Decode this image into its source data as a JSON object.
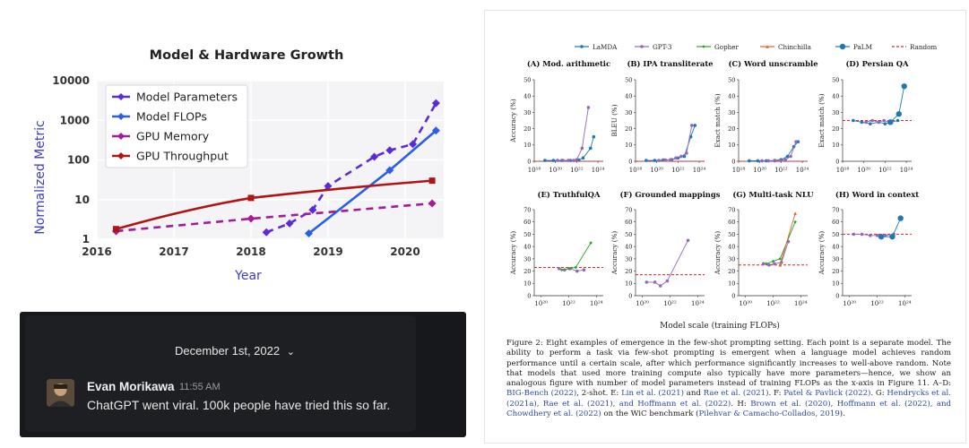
{
  "left_chart": {
    "title": "Model & Hardware Growth",
    "xlabel": "Year",
    "ylabel": "Normalized Metric",
    "x_ticks": [
      "2016",
      "2017",
      "2018",
      "2019",
      "2020"
    ],
    "y_ticks": [
      "1",
      "10",
      "100",
      "1000",
      "10000"
    ],
    "legend": [
      "Model Parameters",
      "Model FLOPs",
      "GPU Memory",
      "GPU Throughput"
    ],
    "colors": [
      "#5c2bd9",
      "#2a5ee8",
      "#a41d96",
      "#b01515"
    ]
  },
  "chart_data": [
    {
      "type": "line",
      "title": "Model & Hardware Growth",
      "xlabel": "Year",
      "ylabel": "Normalized Metric",
      "xlim": [
        2016,
        2020.5
      ],
      "ylim": [
        1,
        10000
      ],
      "yscale": "log",
      "legend_position": "top-left",
      "series": [
        {
          "name": "Model Parameters",
          "style": "dashed",
          "x": [
            2018.2,
            2018.5,
            2018.8,
            2019.0,
            2019.6,
            2019.8,
            2020.1,
            2020.4
          ],
          "y": [
            1.5,
            2.5,
            5.5,
            22,
            120,
            175,
            250,
            2700
          ]
        },
        {
          "name": "Model FLOPs",
          "style": "solid",
          "x": [
            2018.75,
            2019.8,
            2020.4
          ],
          "y": [
            1.4,
            55,
            550
          ]
        },
        {
          "name": "GPU Memory",
          "style": "dashed",
          "x": [
            2016.25,
            2018.0,
            2020.35
          ],
          "y": [
            1.6,
            3.3,
            8
          ]
        },
        {
          "name": "GPU Throughput",
          "style": "solid",
          "x": [
            2016.25,
            2018.0,
            2020.35
          ],
          "y": [
            1.8,
            11,
            30
          ]
        }
      ]
    },
    {
      "type": "line",
      "title": "(A) Mod. arithmetic",
      "ylabel": "Accuracy (%)",
      "xlim": [
        18,
        24.5
      ],
      "ylim": [
        0,
        50
      ],
      "series": [
        {
          "name": "LaMDA",
          "x": [
            19,
            19.8,
            20.6,
            21.4,
            22.2,
            22.6,
            23.3,
            23.6
          ],
          "y": [
            0.5,
            0.5,
            0.5,
            0.5,
            0.8,
            2,
            8,
            15
          ]
        },
        {
          "name": "GPT-3",
          "x": [
            20.2,
            20.7,
            21.2,
            21.7,
            22.0,
            22.5,
            23.1
          ],
          "y": [
            0.5,
            0.5,
            0.5,
            0.5,
            1,
            8,
            33
          ]
        }
      ]
    },
    {
      "type": "line",
      "title": "(B) IPA transliterate",
      "ylabel": "BLEU (%)",
      "xlim": [
        18,
        24.5
      ],
      "ylim": [
        0,
        50
      ],
      "series": [
        {
          "name": "LaMDA",
          "x": [
            19,
            19.8,
            20.6,
            21.4,
            22.0,
            22.6,
            23.2,
            23.6
          ],
          "y": [
            0.5,
            0.5,
            0.8,
            1,
            2,
            3,
            15,
            22
          ]
        },
        {
          "name": "GPT-3",
          "x": [
            20.2,
            20.8,
            21.3,
            21.8,
            22.3,
            22.8,
            23.3
          ],
          "y": [
            0.5,
            0.8,
            1,
            2,
            3,
            5,
            22
          ]
        }
      ]
    },
    {
      "type": "line",
      "title": "(C) Word unscramble",
      "ylabel": "Exact match (%)",
      "xlim": [
        18,
        24.5
      ],
      "ylim": [
        0,
        50
      ],
      "series": [
        {
          "name": "LaMDA",
          "x": [
            19,
            19.8,
            20.6,
            21.4,
            22.0,
            22.6,
            23.2,
            23.6
          ],
          "y": [
            0.3,
            0.3,
            0.3,
            0.5,
            1,
            3,
            9,
            12
          ]
        },
        {
          "name": "GPT-3",
          "x": [
            20.2,
            20.8,
            21.4,
            21.9,
            22.4,
            22.9,
            23.4
          ],
          "y": [
            0.3,
            0.3,
            0.3,
            0.5,
            1,
            3,
            12
          ]
        }
      ]
    },
    {
      "type": "line",
      "title": "(D) Persian QA",
      "ylabel": "Exact match (%)",
      "xlim": [
        18,
        24.5
      ],
      "ylim": [
        0,
        50
      ],
      "series": [
        {
          "name": "LaMDA",
          "x": [
            19,
            19.8,
            20.6,
            21.4,
            22.0,
            22.6,
            23.2
          ],
          "y": [
            25,
            24,
            23,
            24,
            23,
            24,
            25
          ]
        },
        {
          "name": "GPT-3",
          "x": [
            20.2,
            20.8,
            21.4,
            21.9,
            22.4
          ],
          "y": [
            24,
            25,
            24,
            25,
            24
          ]
        },
        {
          "name": "PaLM",
          "x": [
            22.5,
            23.3,
            23.8
          ],
          "y": [
            24,
            29,
            46
          ]
        }
      ]
    },
    {
      "type": "line",
      "title": "(E) TruthfulQA",
      "ylabel": "Accuracy (%)",
      "xlim": [
        19.5,
        24.5
      ],
      "ylim": [
        0,
        70
      ],
      "series": [
        {
          "name": "GPT-3",
          "x": [
            21.3,
            21.7,
            22.1,
            22.6,
            23.1
          ],
          "y": [
            22,
            21,
            22,
            20,
            21
          ]
        },
        {
          "name": "Gopher",
          "x": [
            21.5,
            22.0,
            22.5,
            23.6
          ],
          "y": [
            21,
            22,
            23,
            43
          ]
        }
      ]
    },
    {
      "type": "line",
      "title": "(F) Grounded mappings",
      "ylabel": "Accuracy (%)",
      "xlim": [
        19.5,
        24.5
      ],
      "ylim": [
        0,
        70
      ],
      "series": [
        {
          "name": "GPT-3",
          "x": [
            20.3,
            20.9,
            21.3,
            21.8,
            23.3
          ],
          "y": [
            11,
            11,
            8,
            12,
            45
          ]
        }
      ]
    },
    {
      "type": "line",
      "title": "(G) Multi-task NLU",
      "ylabel": "Accuracy (%)",
      "xlim": [
        19.5,
        24.5
      ],
      "ylim": [
        0,
        70
      ],
      "series": [
        {
          "name": "GPT-3",
          "x": [
            21.3,
            21.7,
            22.1,
            22.6,
            23.1
          ],
          "y": [
            26,
            25,
            26,
            27,
            44
          ]
        },
        {
          "name": "Gopher",
          "x": [
            21.5,
            22.0,
            22.5,
            23.6
          ],
          "y": [
            26,
            28,
            30,
            60
          ]
        },
        {
          "name": "Chinchilla",
          "x": [
            22.5,
            23.6
          ],
          "y": [
            25,
            67
          ]
        }
      ]
    },
    {
      "type": "line",
      "title": "(H) Word in context",
      "ylabel": "Accuracy (%)",
      "xlim": [
        19.5,
        24.5
      ],
      "ylim": [
        0,
        70
      ],
      "series": [
        {
          "name": "GPT-3",
          "x": [
            20.3,
            20.9,
            21.5,
            22.0,
            22.6,
            23.2
          ],
          "y": [
            50,
            50,
            49,
            49,
            49,
            50
          ]
        },
        {
          "name": "PaLM",
          "x": [
            22.3,
            23.1,
            23.7
          ],
          "y": [
            48,
            48,
            63
          ]
        }
      ]
    }
  ],
  "paper": {
    "legend": [
      "LaMDA",
      "GPT-3",
      "Gopher",
      "Chinchilla",
      "PaLM",
      "Random"
    ],
    "legend_colors": [
      "#1f77b4",
      "#9467bd",
      "#2ca02c",
      "#d2691e",
      "#1f77b4",
      "#d62728"
    ],
    "row1_xticks": [
      "10¹⁸",
      "10²⁰",
      "10²²",
      "10²⁴"
    ],
    "row2_xticks": [
      "10²⁰",
      "10²²",
      "10²⁴"
    ],
    "row1_yticks": [
      "0",
      "10",
      "20",
      "30",
      "40",
      "50"
    ],
    "row2_yticks": [
      "0",
      "10",
      "20",
      "30",
      "40",
      "50",
      "60",
      "70"
    ],
    "titles": [
      "(A) Mod. arithmetic",
      "(B) IPA transliterate",
      "(C) Word unscramble",
      "(D) Persian QA",
      "(E) TruthfulQA",
      "(F) Grounded mappings",
      "(G) Multi-task NLU",
      "(H) Word in context"
    ],
    "ylabels": [
      "Accuracy (%)",
      "BLEU (%)",
      "Exact match (%)",
      "Exact match (%)",
      "Accuracy (%)",
      "Accuracy (%)",
      "Accuracy (%)",
      "Accuracy (%)"
    ],
    "random": [
      0,
      0,
      0,
      25,
      23,
      17,
      25,
      50
    ],
    "xlabel": "Model scale (training FLOPs)",
    "caption_lead": "Figure 2: Eight examples of emergence in the few-shot prompting setting. Each point is a separate model. The ability to perform a task via few-shot prompting is emergent when a language model achieves random performance until a certain scale, after which performance significantly increases to well-above random. Note that models that used more training compute also typically have more parameters—hence, we show an analogous figure with number of model parameters instead of training FLOPs as the x-axis in Figure 11. A–D: ",
    "caption_cite1": "BIG-Bench (2022)",
    "caption_mid1": ", 2-shot. E: ",
    "caption_cite2": "Lin et al. (2021)",
    "caption_mid2": " and ",
    "caption_cite3": "Rae et al. (2021)",
    "caption_mid3": ". F: ",
    "caption_cite4": "Patel & Pavlick (2022)",
    "caption_mid4": ". G: ",
    "caption_cite5": "Hendrycks et al. (2021a), Rae et al. (2021), and Hoffmann et al. (2022)",
    "caption_mid5": ". H: ",
    "caption_cite6": "Brown et al. (2020), Hoffmann et al. (2022), and Chowdhery et al. (2022)",
    "caption_mid6": " on the WiC benchmark (",
    "caption_cite7": "Pilehvar & Camacho-Collados, 2019",
    "caption_end": ")."
  },
  "slack": {
    "date": "December 1st, 2022",
    "chevron": "⌄",
    "user": "Evan Morikawa",
    "time": "11:55 AM",
    "message": "ChatGPT went viral. 100k people have tried this so far."
  }
}
